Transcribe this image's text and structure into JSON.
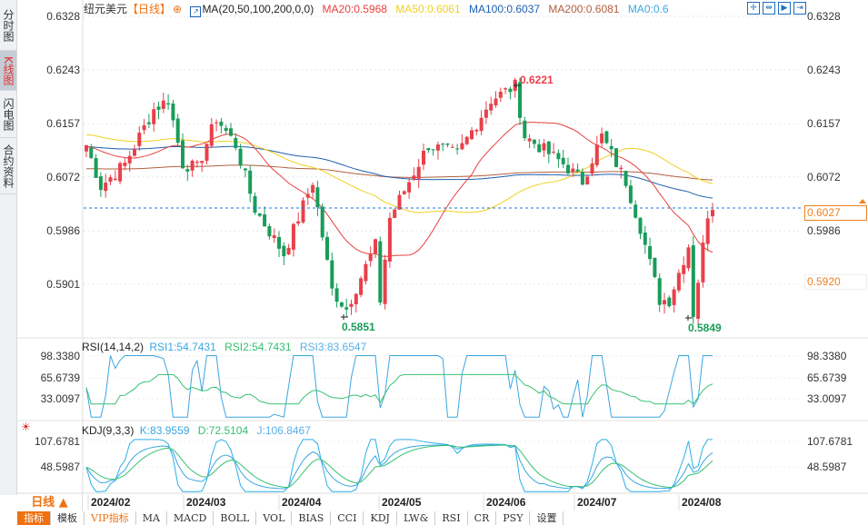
{
  "sidebar": {
    "tabs": [
      "分时图",
      "K线图",
      "闪电图",
      "合约资料"
    ]
  },
  "header": {
    "symbol": "纽元美元",
    "period_tag": "【日线】",
    "ma_label": "MA(20,50,100,200,0,0)",
    "ma20": "MA20:0.5968",
    "ma50": "MA50:0.6061",
    "ma100": "MA100:0.6037",
    "ma200": "MA200:0.6081",
    "ma0": "MA0:0.6"
  },
  "colors": {
    "ma20": "#e8403c",
    "ma50": "#f0d020",
    "ma100": "#1e5fb0",
    "ma200": "#b06040",
    "up": "#e8404a",
    "down": "#1a9c5a",
    "rsi1": "#3aa6e0",
    "rsi2": "#35c070",
    "kdj_k": "#3aa6e0",
    "kdj_d": "#35c070",
    "kdj_j": "#2ab0e8"
  },
  "price_axis": [
    "0.6328",
    "0.6243",
    "0.6157",
    "0.6072",
    "0.5986",
    "0.5901"
  ],
  "current_price": "0.6027",
  "marker_price": "0.5920",
  "annotations": {
    "high": "0.6221",
    "low1": "0.5851",
    "low2": "0.5849"
  },
  "rsi": {
    "label": "RSI(14,14,2)",
    "rsi1": "RSI1:54.7431",
    "rsi2": "RSI2:54.7431",
    "rsi3": "RSI3:83.6547",
    "axis": [
      "98.3380",
      "65.6739",
      "33.0097"
    ]
  },
  "kdj": {
    "label": "KDJ(9,3,3)",
    "k": "K:83.9559",
    "d": "D:72.5104",
    "j": "J:106.8467",
    "axis": [
      "107.6781",
      "48.5987"
    ]
  },
  "period_button": "日线 ▲",
  "x_axis": [
    "2024/02",
    "2024/03",
    "2024/04",
    "2024/05",
    "2024/06",
    "2024/07",
    "2024/08"
  ],
  "bottom_tabs": [
    "指标",
    "模板",
    "VIP指标",
    "MA",
    "MACD",
    "BOLL",
    "VOL",
    "BIAS",
    "CCI",
    "KDJ",
    "LW&",
    "RSI",
    "CR",
    "PSY",
    "设置"
  ],
  "price_path": [
    [
      0,
      0.6123
    ],
    [
      3,
      0.6057
    ],
    [
      8,
      0.6093
    ],
    [
      14,
      0.618
    ],
    [
      17,
      0.6195
    ],
    [
      20,
      0.6093
    ],
    [
      23,
      0.6086
    ],
    [
      27,
      0.6166
    ],
    [
      31,
      0.6123
    ],
    [
      35,
      0.6021
    ],
    [
      41,
      0.5949
    ],
    [
      47,
      0.6065
    ],
    [
      51,
      0.5891
    ],
    [
      54,
      0.5862
    ],
    [
      60,
      0.5963
    ],
    [
      61,
      0.5876
    ],
    [
      63,
      0.6007
    ],
    [
      71,
      0.6123
    ],
    [
      77,
      0.6108
    ],
    [
      84,
      0.6195
    ],
    [
      89,
      0.6217
    ],
    [
      91,
      0.6137
    ],
    [
      99,
      0.6093
    ],
    [
      103,
      0.6065
    ],
    [
      107,
      0.6137
    ],
    [
      112,
      0.6065
    ],
    [
      115,
      0.5992
    ],
    [
      119,
      0.5876
    ],
    [
      121,
      0.5876
    ],
    [
      125,
      0.5963
    ],
    [
      126,
      0.5855
    ],
    [
      129,
      0.6014
    ],
    [
      130,
      0.6027
    ]
  ]
}
